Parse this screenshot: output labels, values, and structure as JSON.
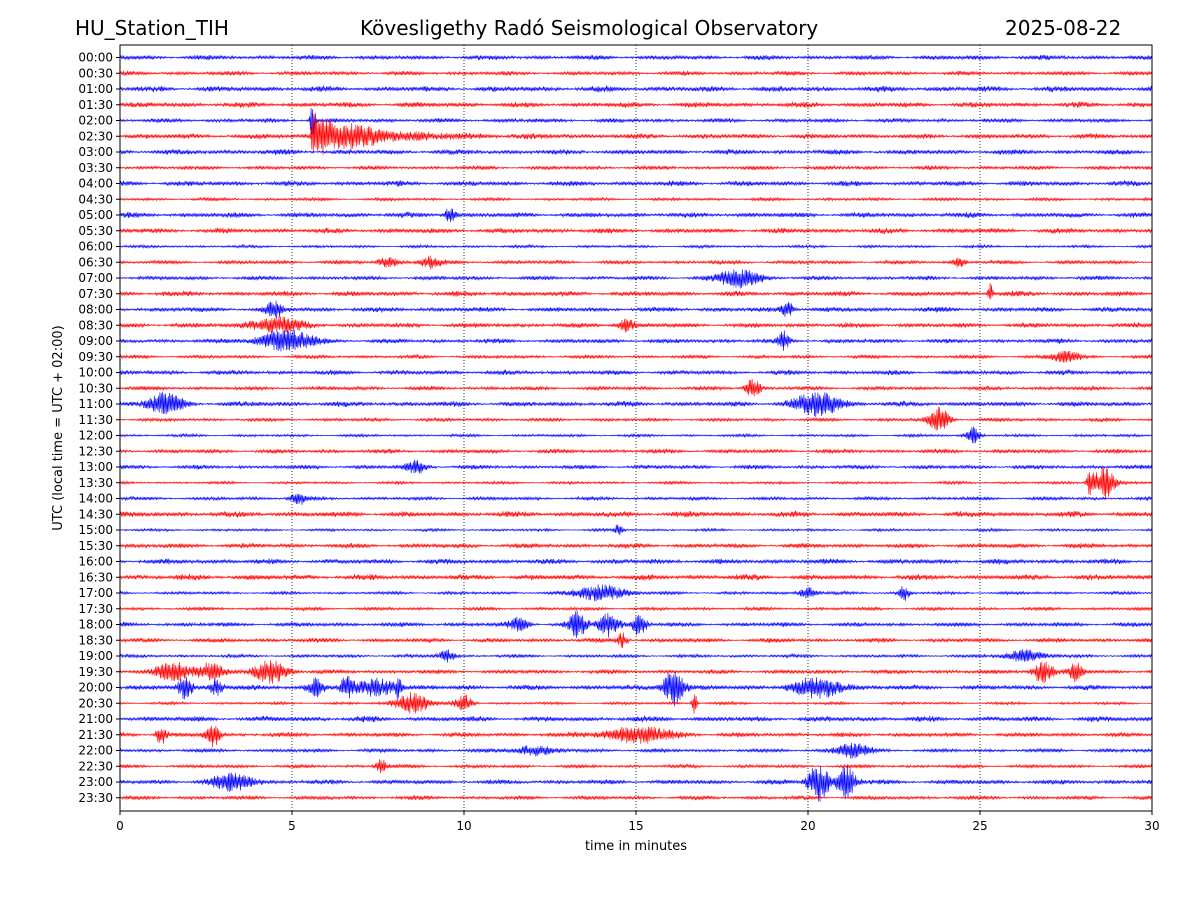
{
  "header": {
    "station": "HU_Station_TIH",
    "observatory": "Kövesligethy Radó Seismological Observatory",
    "date": "2025-08-22"
  },
  "chart_data": {
    "type": "line",
    "xlabel": "time in minutes",
    "ylabel": "UTC (local time = UTC + 02:00)",
    "xlim": [
      0,
      30
    ],
    "x_ticks": [
      "0",
      "5",
      "10",
      "15",
      "20",
      "25",
      "30"
    ],
    "x_tick_values": [
      0,
      5,
      10,
      15,
      20,
      25,
      30
    ],
    "grid": "vertical dotted",
    "row_labels": [
      "00:00",
      "00:30",
      "01:00",
      "01:30",
      "02:00",
      "02:30",
      "03:00",
      "03:30",
      "04:00",
      "04:30",
      "05:00",
      "05:30",
      "06:00",
      "06:30",
      "07:00",
      "07:30",
      "08:00",
      "08:30",
      "09:00",
      "09:30",
      "10:00",
      "10:30",
      "11:00",
      "11:30",
      "12:00",
      "12:30",
      "13:00",
      "13:30",
      "14:00",
      "14:30",
      "15:00",
      "15:30",
      "16:00",
      "16:30",
      "17:00",
      "17:30",
      "18:00",
      "18:30",
      "19:00",
      "19:30",
      "20:00",
      "20:30",
      "21:00",
      "21:30",
      "22:00",
      "22:30",
      "23:00",
      "23:30"
    ],
    "colors": [
      "#0000ff",
      "#ff0000"
    ],
    "bursts": [
      {
        "row": 4,
        "minute": 5.6,
        "amp": 1.6,
        "width": 0.15
      },
      {
        "row": 5,
        "minute": 5.6,
        "amp": 1.9,
        "width": 4.5,
        "decay": true
      },
      {
        "row": 10,
        "minute": 9.6,
        "amp": 0.6,
        "width": 0.3
      },
      {
        "row": 13,
        "minute": 9.0,
        "amp": 0.5,
        "width": 0.6
      },
      {
        "row": 13,
        "minute": 7.8,
        "amp": 0.4,
        "width": 0.6
      },
      {
        "row": 13,
        "minute": 24.4,
        "amp": 0.5,
        "width": 0.3
      },
      {
        "row": 14,
        "minute": 18.0,
        "amp": 0.8,
        "width": 1.2
      },
      {
        "row": 15,
        "minute": 25.3,
        "amp": 0.9,
        "width": 0.15
      },
      {
        "row": 16,
        "minute": 4.5,
        "amp": 0.6,
        "width": 0.5
      },
      {
        "row": 16,
        "minute": 19.4,
        "amp": 0.6,
        "width": 0.4
      },
      {
        "row": 17,
        "minute": 4.5,
        "amp": 0.6,
        "width": 1.5
      },
      {
        "row": 17,
        "minute": 14.7,
        "amp": 0.5,
        "width": 0.5
      },
      {
        "row": 18,
        "minute": 4.8,
        "amp": 0.9,
        "width": 1.6
      },
      {
        "row": 18,
        "minute": 19.3,
        "amp": 0.8,
        "width": 0.3
      },
      {
        "row": 19,
        "minute": 27.5,
        "amp": 0.5,
        "width": 0.8
      },
      {
        "row": 21,
        "minute": 18.4,
        "amp": 0.9,
        "width": 0.4
      },
      {
        "row": 22,
        "minute": 1.3,
        "amp": 0.9,
        "width": 1.0
      },
      {
        "row": 22,
        "minute": 20.3,
        "amp": 1.0,
        "width": 1.3
      },
      {
        "row": 23,
        "minute": 23.8,
        "amp": 1.0,
        "width": 0.6
      },
      {
        "row": 24,
        "minute": 24.8,
        "amp": 0.7,
        "width": 0.4
      },
      {
        "row": 26,
        "minute": 8.6,
        "amp": 0.5,
        "width": 0.6
      },
      {
        "row": 27,
        "minute": 28.6,
        "amp": 1.4,
        "width": 0.6
      },
      {
        "row": 27,
        "minute": 28.2,
        "amp": 1.0,
        "width": 0.2
      },
      {
        "row": 28,
        "minute": 5.2,
        "amp": 0.5,
        "width": 0.5
      },
      {
        "row": 30,
        "minute": 14.5,
        "amp": 0.6,
        "width": 0.2
      },
      {
        "row": 34,
        "minute": 14.0,
        "amp": 0.7,
        "width": 1.4
      },
      {
        "row": 34,
        "minute": 20.0,
        "amp": 0.5,
        "width": 0.5
      },
      {
        "row": 34,
        "minute": 22.8,
        "amp": 0.6,
        "width": 0.3
      },
      {
        "row": 36,
        "minute": 13.3,
        "amp": 1.1,
        "width": 0.5
      },
      {
        "row": 36,
        "minute": 14.2,
        "amp": 1.0,
        "width": 0.6
      },
      {
        "row": 36,
        "minute": 15.1,
        "amp": 1.0,
        "width": 0.4
      },
      {
        "row": 36,
        "minute": 11.6,
        "amp": 0.5,
        "width": 0.6
      },
      {
        "row": 37,
        "minute": 14.6,
        "amp": 0.6,
        "width": 0.3
      },
      {
        "row": 38,
        "minute": 9.5,
        "amp": 0.5,
        "width": 0.5
      },
      {
        "row": 38,
        "minute": 26.3,
        "amp": 0.5,
        "width": 1.2
      },
      {
        "row": 39,
        "minute": 1.6,
        "amp": 0.8,
        "width": 1.0
      },
      {
        "row": 39,
        "minute": 2.6,
        "amp": 0.7,
        "width": 0.8
      },
      {
        "row": 39,
        "minute": 4.4,
        "amp": 0.9,
        "width": 1.0
      },
      {
        "row": 39,
        "minute": 26.8,
        "amp": 0.9,
        "width": 0.6
      },
      {
        "row": 39,
        "minute": 27.8,
        "amp": 0.9,
        "width": 0.4
      },
      {
        "row": 40,
        "minute": 1.9,
        "amp": 0.9,
        "width": 0.4
      },
      {
        "row": 40,
        "minute": 2.8,
        "amp": 0.8,
        "width": 0.4
      },
      {
        "row": 40,
        "minute": 5.7,
        "amp": 0.7,
        "width": 0.5
      },
      {
        "row": 40,
        "minute": 6.6,
        "amp": 0.9,
        "width": 0.4
      },
      {
        "row": 40,
        "minute": 7.5,
        "amp": 0.8,
        "width": 1.0
      },
      {
        "row": 40,
        "minute": 8.1,
        "amp": 1.0,
        "width": 0.2
      },
      {
        "row": 40,
        "minute": 16.1,
        "amp": 1.6,
        "width": 0.6
      },
      {
        "row": 40,
        "minute": 20.3,
        "amp": 0.8,
        "width": 1.5
      },
      {
        "row": 41,
        "minute": 8.5,
        "amp": 0.9,
        "width": 1.0
      },
      {
        "row": 41,
        "minute": 10.0,
        "amp": 0.7,
        "width": 0.5
      },
      {
        "row": 41,
        "minute": 16.7,
        "amp": 1.0,
        "width": 0.15
      },
      {
        "row": 43,
        "minute": 1.2,
        "amp": 0.8,
        "width": 0.3
      },
      {
        "row": 43,
        "minute": 2.7,
        "amp": 1.0,
        "width": 0.4
      },
      {
        "row": 43,
        "minute": 15.0,
        "amp": 0.7,
        "width": 2.0
      },
      {
        "row": 44,
        "minute": 21.3,
        "amp": 0.6,
        "width": 1.0
      },
      {
        "row": 44,
        "minute": 12.0,
        "amp": 0.4,
        "width": 1.2
      },
      {
        "row": 45,
        "minute": 7.6,
        "amp": 0.6,
        "width": 0.3
      },
      {
        "row": 46,
        "minute": 3.3,
        "amp": 0.7,
        "width": 1.2
      },
      {
        "row": 46,
        "minute": 20.3,
        "amp": 1.6,
        "width": 0.6
      },
      {
        "row": 46,
        "minute": 21.1,
        "amp": 1.3,
        "width": 0.6
      }
    ]
  }
}
